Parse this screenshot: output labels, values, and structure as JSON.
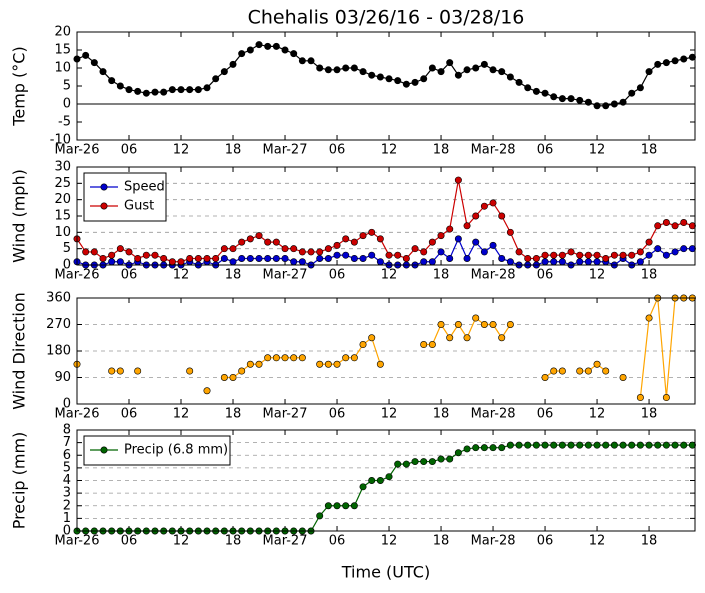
{
  "chart_data": [
    {
      "type": "line",
      "title": "Chehalis 03/26/16 - 03/28/16",
      "ylabel": "Temp (°C)",
      "x": [
        0,
        1,
        2,
        3,
        4,
        5,
        6,
        7,
        8,
        9,
        10,
        11,
        12,
        13,
        14,
        15,
        16,
        17,
        18,
        19,
        20,
        21,
        22,
        23,
        24,
        25,
        26,
        27,
        28,
        29,
        30,
        31,
        32,
        33,
        34,
        35,
        36,
        37,
        38,
        39,
        40,
        41,
        42,
        43,
        44,
        45,
        46,
        47,
        48,
        49,
        50,
        51,
        52,
        53,
        54,
        55,
        56,
        57,
        58,
        59,
        60,
        61,
        62,
        63,
        64,
        65,
        66,
        67,
        68,
        69,
        70,
        71
      ],
      "values": [
        12.5,
        13.5,
        11.5,
        9,
        6.5,
        5,
        4,
        3.5,
        3,
        3.3,
        3.3,
        4,
        4,
        4,
        4,
        4.5,
        7,
        9,
        11,
        14,
        15,
        16.5,
        16,
        16,
        15,
        14,
        12,
        12,
        10,
        9.5,
        9.5,
        10,
        10,
        9,
        8,
        7.5,
        7,
        6.5,
        5.5,
        6,
        7,
        10,
        9,
        11.5,
        8,
        9.5,
        10,
        11,
        9.5,
        9,
        7.5,
        6,
        4.5,
        3.5,
        3,
        2,
        1.5,
        1.5,
        1,
        0.5,
        -0.5,
        -0.5,
        0,
        0.5,
        3,
        4.5,
        9,
        11,
        11.5,
        12,
        12.5,
        13
      ],
      "color": "#000000",
      "zero_line": true,
      "grid": false,
      "xlim": [
        0,
        71.3
      ],
      "xticks": [
        {
          "value": 0,
          "label": "Mar-26"
        },
        {
          "value": 6,
          "label": "06"
        },
        {
          "value": 12,
          "label": "12"
        },
        {
          "value": 18,
          "label": "18"
        },
        {
          "value": 24,
          "label": "Mar-27"
        },
        {
          "value": 30,
          "label": "06"
        },
        {
          "value": 36,
          "label": "12"
        },
        {
          "value": 42,
          "label": "18"
        },
        {
          "value": 48,
          "label": "Mar-28"
        },
        {
          "value": 54,
          "label": "06"
        },
        {
          "value": 60,
          "label": "12"
        },
        {
          "value": 66,
          "label": "18"
        }
      ],
      "ylim": [
        -10,
        20
      ],
      "yticks": [
        -10,
        -5,
        0,
        5,
        10,
        15,
        20
      ]
    },
    {
      "type": "line",
      "ylabel": "Wind (mph)",
      "legend": "upper left",
      "grid": true,
      "x": [
        0,
        1,
        2,
        3,
        4,
        5,
        6,
        7,
        8,
        9,
        10,
        11,
        12,
        13,
        14,
        15,
        16,
        17,
        18,
        19,
        20,
        21,
        22,
        23,
        24,
        25,
        26,
        27,
        28,
        29,
        30,
        31,
        32,
        33,
        34,
        35,
        36,
        37,
        38,
        39,
        40,
        41,
        42,
        43,
        44,
        45,
        46,
        47,
        48,
        49,
        50,
        51,
        52,
        53,
        54,
        55,
        56,
        57,
        58,
        59,
        60,
        61,
        62,
        63,
        64,
        65,
        66,
        67,
        68,
        69,
        70,
        71
      ],
      "series": [
        {
          "name": "Speed",
          "color": "#0000cc",
          "values": [
            1,
            0,
            0,
            0,
            1,
            1,
            0,
            1,
            0,
            0,
            0,
            0,
            0,
            1,
            0,
            1,
            0,
            2,
            1,
            2,
            2,
            2,
            2,
            2,
            2,
            1,
            1,
            0,
            2,
            2,
            3,
            3,
            2,
            2,
            3,
            1,
            0,
            0,
            0,
            0,
            1,
            1,
            4,
            2,
            8,
            2,
            7,
            4,
            6,
            2,
            1,
            0,
            0,
            0,
            1,
            1,
            1,
            0,
            1,
            1,
            1,
            1,
            0,
            2,
            0,
            1,
            3,
            5,
            3,
            4,
            5,
            5
          ]
        },
        {
          "name": "Gust",
          "color": "#cc0000",
          "values": [
            8,
            4,
            4,
            2,
            3,
            5,
            4,
            2,
            3,
            3,
            2,
            1,
            1,
            2,
            2,
            2,
            2,
            5,
            5,
            7,
            8,
            9,
            7,
            7,
            5,
            5,
            4,
            4,
            4,
            5,
            6,
            8,
            7,
            9,
            10,
            8,
            3,
            3,
            2,
            5,
            4,
            7,
            9,
            11,
            26,
            12,
            15,
            18,
            19,
            15,
            10,
            4,
            2,
            2,
            3,
            3,
            3,
            4,
            3,
            3,
            3,
            2,
            3,
            3,
            3,
            4,
            7,
            12,
            13,
            12,
            13,
            12
          ]
        }
      ],
      "xlim": [
        0,
        71.3
      ],
      "xticks": [
        {
          "value": 0,
          "label": "Mar-26"
        },
        {
          "value": 6,
          "label": "06"
        },
        {
          "value": 12,
          "label": "12"
        },
        {
          "value": 18,
          "label": "18"
        },
        {
          "value": 24,
          "label": "Mar-27"
        },
        {
          "value": 30,
          "label": "06"
        },
        {
          "value": 36,
          "label": "12"
        },
        {
          "value": 42,
          "label": "18"
        },
        {
          "value": 48,
          "label": "Mar-28"
        },
        {
          "value": 54,
          "label": "06"
        },
        {
          "value": 60,
          "label": "12"
        },
        {
          "value": 66,
          "label": "18"
        }
      ],
      "ylim": [
        0,
        30
      ],
      "yticks": [
        0,
        5,
        10,
        15,
        20,
        25,
        30
      ]
    },
    {
      "type": "line",
      "ylabel": "Wind Direction",
      "grid": true,
      "color": "#ffa500",
      "x": [
        0,
        1,
        2,
        3,
        4,
        5,
        6,
        7,
        8,
        9,
        10,
        11,
        12,
        13,
        14,
        15,
        16,
        17,
        18,
        19,
        20,
        21,
        22,
        23,
        24,
        25,
        26,
        27,
        28,
        29,
        30,
        31,
        32,
        33,
        34,
        35,
        36,
        37,
        38,
        39,
        40,
        41,
        42,
        43,
        44,
        45,
        46,
        47,
        48,
        49,
        50,
        51,
        52,
        53,
        54,
        55,
        56,
        57,
        58,
        59,
        60,
        61,
        62,
        63,
        64,
        65,
        66,
        67,
        68,
        69,
        70,
        71
      ],
      "values": [
        135,
        null,
        null,
        null,
        112,
        112,
        null,
        112,
        null,
        null,
        null,
        null,
        null,
        112,
        null,
        45,
        null,
        90,
        90,
        112,
        135,
        135,
        157,
        157,
        157,
        157,
        157,
        null,
        135,
        135,
        135,
        157,
        157,
        202,
        225,
        135,
        null,
        null,
        null,
        null,
        202,
        202,
        270,
        225,
        270,
        225,
        292,
        270,
        270,
        225,
        270,
        null,
        null,
        null,
        90,
        112,
        112,
        null,
        112,
        112,
        135,
        112,
        null,
        90,
        null,
        22,
        292,
        360,
        22,
        360,
        360,
        360
      ],
      "xlim": [
        0,
        71.3
      ],
      "xticks": [
        {
          "value": 0,
          "label": "Mar-26"
        },
        {
          "value": 6,
          "label": "06"
        },
        {
          "value": 12,
          "label": "12"
        },
        {
          "value": 18,
          "label": "18"
        },
        {
          "value": 24,
          "label": "Mar-27"
        },
        {
          "value": 30,
          "label": "06"
        },
        {
          "value": 36,
          "label": "12"
        },
        {
          "value": 42,
          "label": "18"
        },
        {
          "value": 48,
          "label": "Mar-28"
        },
        {
          "value": 54,
          "label": "06"
        },
        {
          "value": 60,
          "label": "12"
        },
        {
          "value": 66,
          "label": "18"
        }
      ],
      "ylim": [
        0,
        360
      ],
      "yticks": [
        0,
        90,
        180,
        270,
        360
      ]
    },
    {
      "type": "line",
      "ylabel": "Precip (mm)",
      "xlabel": "Time (UTC)",
      "legend": "upper left",
      "grid": true,
      "x": [
        0,
        1,
        2,
        3,
        4,
        5,
        6,
        7,
        8,
        9,
        10,
        11,
        12,
        13,
        14,
        15,
        16,
        17,
        18,
        19,
        20,
        21,
        22,
        23,
        24,
        25,
        26,
        27,
        28,
        29,
        30,
        31,
        32,
        33,
        34,
        35,
        36,
        37,
        38,
        39,
        40,
        41,
        42,
        43,
        44,
        45,
        46,
        47,
        48,
        49,
        50,
        51,
        52,
        53,
        54,
        55,
        56,
        57,
        58,
        59,
        60,
        61,
        62,
        63,
        64,
        65,
        66,
        67,
        68,
        69,
        70,
        71
      ],
      "series": [
        {
          "name": "Precip (6.8 mm)",
          "color": "#006400",
          "values": [
            0,
            0,
            0,
            0,
            0,
            0,
            0,
            0,
            0,
            0,
            0,
            0,
            0,
            0,
            0,
            0,
            0,
            0,
            0,
            0,
            0,
            0,
            0,
            0,
            0,
            0,
            0,
            0,
            1.2,
            2,
            2,
            2,
            2,
            3.5,
            4,
            4,
            4.3,
            5.3,
            5.3,
            5.5,
            5.5,
            5.5,
            5.7,
            5.7,
            6.2,
            6.5,
            6.6,
            6.6,
            6.6,
            6.6,
            6.8,
            6.8,
            6.8,
            6.8,
            6.8,
            6.8,
            6.8,
            6.8,
            6.8,
            6.8,
            6.8,
            6.8,
            6.8,
            6.8,
            6.8,
            6.8,
            6.8,
            6.8,
            6.8,
            6.8,
            6.8,
            6.8
          ]
        }
      ],
      "xlim": [
        0,
        71.3
      ],
      "xticks": [
        {
          "value": 0,
          "label": "Mar-26"
        },
        {
          "value": 6,
          "label": "06"
        },
        {
          "value": 12,
          "label": "12"
        },
        {
          "value": 18,
          "label": "18"
        },
        {
          "value": 24,
          "label": "Mar-27"
        },
        {
          "value": 30,
          "label": "06"
        },
        {
          "value": 36,
          "label": "12"
        },
        {
          "value": 42,
          "label": "18"
        },
        {
          "value": 48,
          "label": "Mar-28"
        },
        {
          "value": 54,
          "label": "06"
        },
        {
          "value": 60,
          "label": "12"
        },
        {
          "value": 66,
          "label": "18"
        }
      ],
      "ylim": [
        0,
        8
      ],
      "yticks": [
        0,
        1,
        2,
        3,
        4,
        5,
        6,
        7,
        8
      ]
    }
  ]
}
